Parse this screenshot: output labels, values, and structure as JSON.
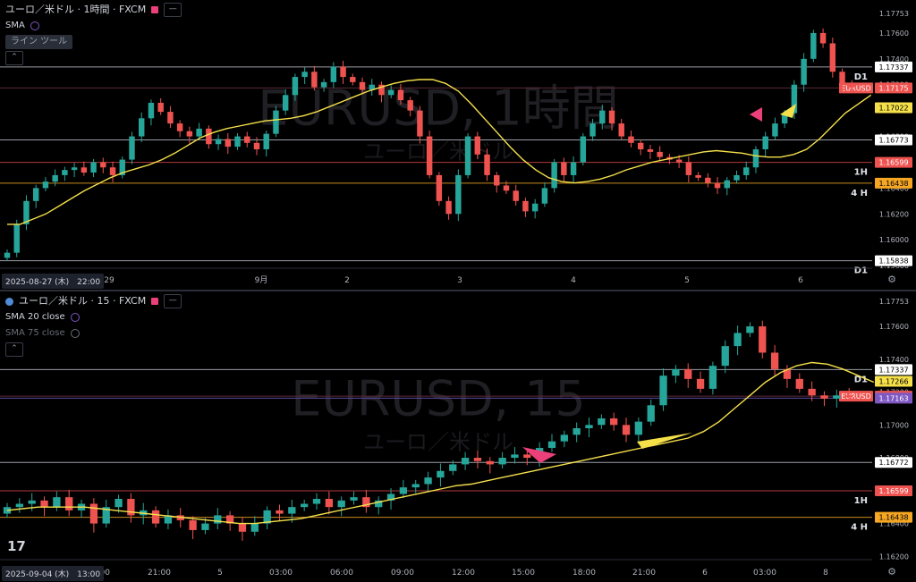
{
  "colors": {
    "up": "#26a69a",
    "down": "#ef5350",
    "ma": "#f5e04a",
    "accent": "#ec407a",
    "pink": "#ec407a",
    "yellow": "#f5e04a"
  },
  "chart_data": [
    {
      "type": "candlestick",
      "title": "ユーロ／米ドル · 1時間 · FXCM",
      "watermark": "EURUSD, 1時間",
      "watermark_sub": "ユーロ／米ドル",
      "indicators": [
        "SMA"
      ],
      "toolbar_label": "ライン ツール",
      "date_badge": "2025-08-27 (木)　22:00",
      "x_ticks": [
        "29",
        "9月",
        "2",
        "3",
        "4",
        "5",
        "6"
      ],
      "y_ticks": [
        "1.17753",
        "1.17600",
        "1.17400",
        "1.17200",
        "1.17000",
        "1.16800",
        "1.16600",
        "1.16400",
        "1.16200",
        "1.16000",
        "1.15800"
      ],
      "ylim": [
        1.1578,
        1.178
      ],
      "levels": [
        {
          "value": 1.17337,
          "label": "1.17337",
          "tag": "D1",
          "kind": "white"
        },
        {
          "value": 1.17175,
          "label": "1.17175",
          "tag": "EURUSD",
          "kind": "price"
        },
        {
          "value": 1.17022,
          "label": "1.17022",
          "tag": "",
          "kind": "ma"
        },
        {
          "value": 1.16773,
          "label": "1.16773",
          "tag": "",
          "kind": "white"
        },
        {
          "value": 1.16599,
          "label": "1.16599",
          "tag": "1H",
          "kind": "red"
        },
        {
          "value": 1.16438,
          "label": "1.16438",
          "tag": "4 H",
          "kind": "orange"
        },
        {
          "value": 1.15838,
          "label": "1.15838",
          "tag": "D1",
          "kind": "white"
        }
      ],
      "series_close": [
        1.159,
        1.1612,
        1.163,
        1.164,
        1.1645,
        1.165,
        1.1654,
        1.1656,
        1.1652,
        1.166,
        1.1656,
        1.165,
        1.1662,
        1.168,
        1.1694,
        1.1706,
        1.1699,
        1.169,
        1.1684,
        1.168,
        1.1686,
        1.1674,
        1.1678,
        1.1672,
        1.168,
        1.1675,
        1.167,
        1.1682,
        1.17,
        1.1712,
        1.1726,
        1.173,
        1.1718,
        1.1722,
        1.1734,
        1.1726,
        1.1722,
        1.1716,
        1.172,
        1.1712,
        1.1716,
        1.1708,
        1.17,
        1.168,
        1.165,
        1.163,
        1.162,
        1.165,
        1.168,
        1.1666,
        1.165,
        1.1642,
        1.1638,
        1.163,
        1.1622,
        1.1628,
        1.164,
        1.166,
        1.165,
        1.166,
        1.168,
        1.169,
        1.17,
        1.169,
        1.168,
        1.1675,
        1.167,
        1.1668,
        1.1664,
        1.1662,
        1.166,
        1.165,
        1.1648,
        1.1644,
        1.164,
        1.1646,
        1.165,
        1.1656,
        1.167,
        1.168,
        1.169,
        1.1698,
        1.172,
        1.174,
        1.176,
        1.1752,
        1.173,
        1.172,
        1.1718
      ],
      "series_ma": [
        1.1612,
        1.1612,
        1.1616,
        1.162,
        1.1626,
        1.1632,
        1.1638,
        1.1643,
        1.1648,
        1.1652,
        1.1655,
        1.1658,
        1.1662,
        1.1667,
        1.1673,
        1.1679,
        1.1683,
        1.1686,
        1.1688,
        1.169,
        1.1692,
        1.1693,
        1.1694,
        1.1696,
        1.1699,
        1.1703,
        1.1707,
        1.1711,
        1.1715,
        1.1718,
        1.1721,
        1.1723,
        1.1724,
        1.1724,
        1.1721,
        1.1715,
        1.1705,
        1.1694,
        1.1683,
        1.1672,
        1.1662,
        1.1654,
        1.1648,
        1.1645,
        1.1644,
        1.1645,
        1.1647,
        1.165,
        1.1654,
        1.1657,
        1.166,
        1.1662,
        1.1664,
        1.1666,
        1.1668,
        1.1669,
        1.1668,
        1.1667,
        1.1665,
        1.1664,
        1.1664,
        1.1666,
        1.167,
        1.1678,
        1.1688,
        1.1698,
        1.1705,
        1.1712
      ]
    },
    {
      "type": "candlestick",
      "title": "ユーロ／米ドル · 15 · FXCM",
      "watermark": "EURUSD, 15",
      "watermark_sub": "ユーロ／米ドル",
      "indicators": [
        "SMA 20 close",
        "SMA 75 close"
      ],
      "date_badge": "2025-09-04 (木)　13:00",
      "x_ticks": [
        "18:00",
        "21:00",
        "5",
        "03:00",
        "06:00",
        "09:00",
        "12:00",
        "15:00",
        "18:00",
        "21:00",
        "6",
        "03:00",
        "8"
      ],
      "y_ticks": [
        "1.17753",
        "1.17600",
        "1.17400",
        "1.17200",
        "1.17000",
        "1.16800",
        "1.16600",
        "1.16400",
        "1.16200"
      ],
      "ylim": [
        1.1618,
        1.1778
      ],
      "levels": [
        {
          "value": 1.17337,
          "label": "1.17337",
          "tag": "D1",
          "kind": "white"
        },
        {
          "value": 1.17266,
          "label": "1.17266",
          "tag": "",
          "kind": "ma"
        },
        {
          "value": 1.17175,
          "label": "1.17175",
          "tag": "EURUSD",
          "kind": "price"
        },
        {
          "value": 1.17163,
          "label": "1.17163",
          "tag": "",
          "kind": "purple"
        },
        {
          "value": 1.16772,
          "label": "1.16772",
          "tag": "",
          "kind": "white"
        },
        {
          "value": 1.16599,
          "label": "1.16599",
          "tag": "1H",
          "kind": "red"
        },
        {
          "value": 1.16438,
          "label": "1.16438",
          "tag": "4 H",
          "kind": "orange"
        }
      ],
      "series_close": [
        1.165,
        1.1652,
        1.1654,
        1.165,
        1.1656,
        1.1648,
        1.1652,
        1.164,
        1.165,
        1.1655,
        1.1645,
        1.1648,
        1.164,
        1.1645,
        1.1642,
        1.1636,
        1.164,
        1.1645,
        1.164,
        1.1635,
        1.164,
        1.1648,
        1.1646,
        1.165,
        1.1652,
        1.1655,
        1.165,
        1.1654,
        1.1656,
        1.165,
        1.1654,
        1.1658,
        1.1662,
        1.1664,
        1.1668,
        1.1672,
        1.1676,
        1.168,
        1.1678,
        1.1676,
        1.168,
        1.1682,
        1.168,
        1.1686,
        1.169,
        1.1694,
        1.1698,
        1.17,
        1.1704,
        1.17,
        1.1694,
        1.1702,
        1.1712,
        1.173,
        1.1734,
        1.1728,
        1.1722,
        1.1736,
        1.1748,
        1.1756,
        1.176,
        1.1744,
        1.1734,
        1.1728,
        1.1722,
        1.1718,
        1.1716,
        1.1718,
        1.1717
      ],
      "series_ma": [
        1.1648,
        1.1649,
        1.165,
        1.165,
        1.165,
        1.165,
        1.1649,
        1.1648,
        1.1647,
        1.1646,
        1.1645,
        1.1644,
        1.1643,
        1.1642,
        1.1641,
        1.164,
        1.164,
        1.1641,
        1.1642,
        1.1643,
        1.1645,
        1.1647,
        1.1649,
        1.1651,
        1.1653,
        1.1655,
        1.1657,
        1.1659,
        1.1661,
        1.1663,
        1.1664,
        1.1666,
        1.1668,
        1.167,
        1.1672,
        1.1674,
        1.1676,
        1.1678,
        1.168,
        1.1682,
        1.1684,
        1.1686,
        1.1688,
        1.169,
        1.1692,
        1.1696,
        1.1702,
        1.171,
        1.1718,
        1.1726,
        1.1732,
        1.1736,
        1.1738,
        1.1737,
        1.1734,
        1.173,
        1.1726
      ]
    }
  ]
}
